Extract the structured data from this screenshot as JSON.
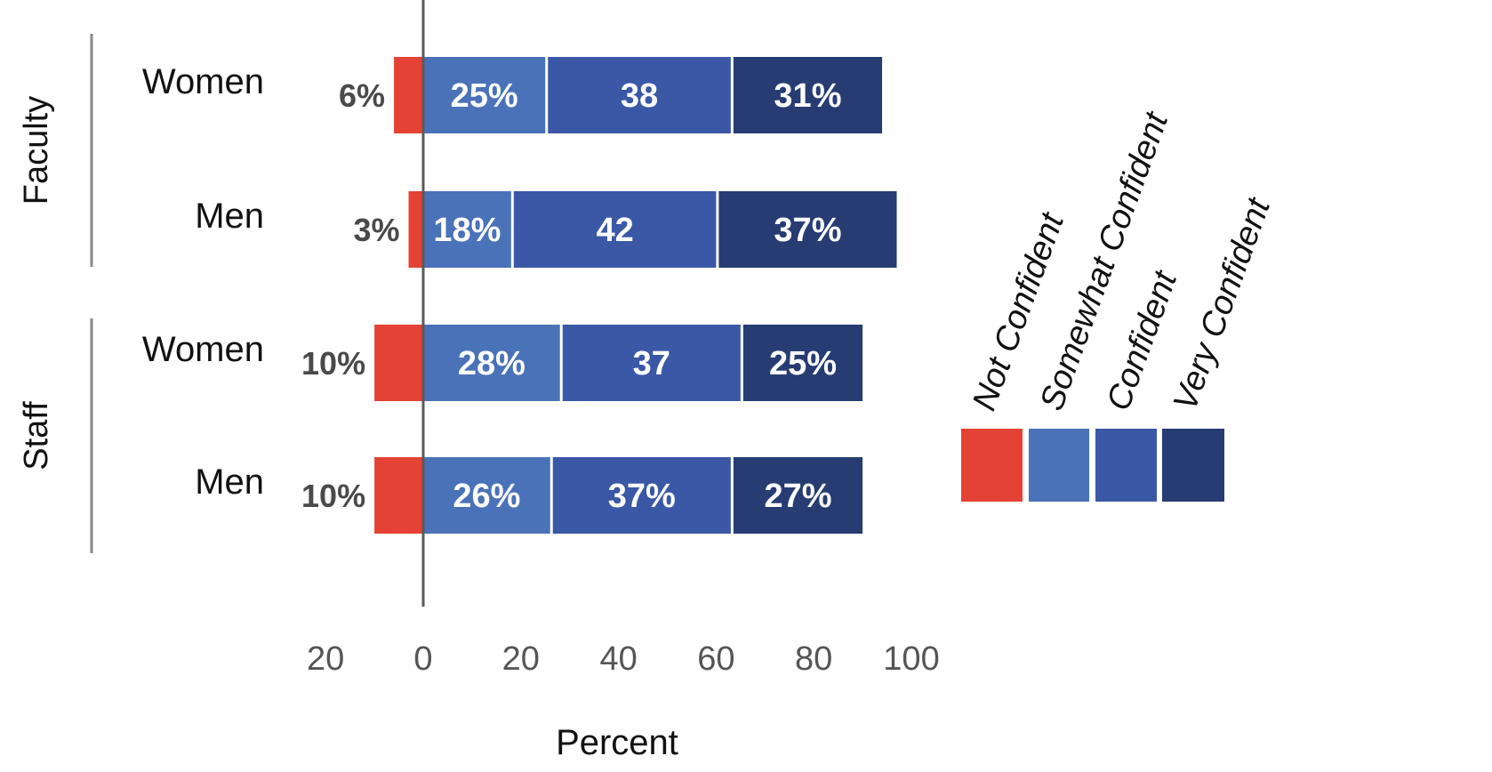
{
  "chart_data": {
    "type": "bar",
    "orientation": "horizontal",
    "stacked": "diverging",
    "xlabel": "Percent",
    "xlim": [
      -20,
      100
    ],
    "x_ticks": [
      -20,
      0,
      20,
      40,
      60,
      80,
      100
    ],
    "x_tick_labels": [
      "20",
      "0",
      "20",
      "40",
      "60",
      "80",
      "100"
    ],
    "groups": [
      {
        "name": "Faculty",
        "rows": [
          "Women",
          "Men"
        ]
      },
      {
        "name": "Staff",
        "rows": [
          "Women",
          "Men"
        ]
      }
    ],
    "categories": [
      "Faculty Women",
      "Faculty Men",
      "Staff Women",
      "Staff Men"
    ],
    "row_labels": [
      "Women",
      "Men",
      "Women",
      "Men"
    ],
    "series": [
      {
        "name": "Not Confident",
        "color": "#e34234",
        "values": [
          6,
          3,
          10,
          10
        ],
        "labels": [
          "6%",
          "3%",
          "10%",
          "10%"
        ]
      },
      {
        "name": "Somewhat Confident",
        "color": "#4a72b8",
        "values": [
          25,
          18,
          28,
          26
        ],
        "labels": [
          "25%",
          "18%",
          "28%",
          "26%"
        ]
      },
      {
        "name": "Confident",
        "color": "#3b58a6",
        "values": [
          38,
          42,
          37,
          37
        ],
        "labels": [
          "38",
          "42",
          "37",
          "37%"
        ]
      },
      {
        "name": "Very Confident",
        "color": "#263c72",
        "values": [
          31,
          37,
          25,
          27
        ],
        "labels": [
          "31%",
          "37%",
          "25%",
          "27%"
        ]
      }
    ],
    "legend_position": "right",
    "grid": false
  }
}
